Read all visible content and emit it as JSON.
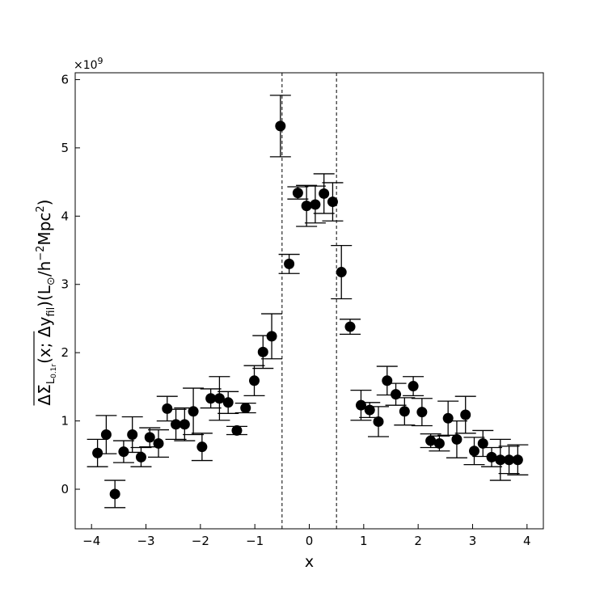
{
  "chart_data": {
    "type": "scatter",
    "title": "",
    "xlabel": "x",
    "ylabel": {
      "delta": "Δ",
      "sigma": "Σ",
      "sub": "L",
      "sub_detail": "0.1r",
      "args": "(x; Δy",
      "args_sub": "fil",
      "units_a": ")(L",
      "units_sun": "⊙",
      "units_b": "/h",
      "units_exp": "−2",
      "units_c": "Mpc",
      "units_exp2": "2",
      "units_d": ")"
    },
    "y_multiplier": "×10",
    "y_multiplier_exp": "9",
    "xlim": [
      -4.3,
      4.3
    ],
    "ylim": [
      -0.58,
      6.1
    ],
    "xticks": [
      {
        "v": -4,
        "label": "−4"
      },
      {
        "v": -3,
        "label": "−3"
      },
      {
        "v": -2,
        "label": "−2"
      },
      {
        "v": -1,
        "label": "−1"
      },
      {
        "v": 0,
        "label": "0"
      },
      {
        "v": 1,
        "label": "1"
      },
      {
        "v": 2,
        "label": "2"
      },
      {
        "v": 3,
        "label": "3"
      },
      {
        "v": 4,
        "label": "4"
      }
    ],
    "yticks": [
      {
        "v": 0,
        "label": "0"
      },
      {
        "v": 1,
        "label": "1"
      },
      {
        "v": 2,
        "label": "2"
      },
      {
        "v": 3,
        "label": "3"
      },
      {
        "v": 4,
        "label": "4"
      },
      {
        "v": 5,
        "label": "5"
      },
      {
        "v": 6,
        "label": "6"
      }
    ],
    "vlines": [
      -0.5,
      0.5
    ],
    "grid": false,
    "points": [
      {
        "x": -3.89,
        "y": 0.53,
        "err": 0.2
      },
      {
        "x": -3.73,
        "y": 0.8,
        "err": 0.28
      },
      {
        "x": -3.57,
        "y": -0.07,
        "err": 0.2
      },
      {
        "x": -3.41,
        "y": 0.55,
        "err": 0.16
      },
      {
        "x": -3.25,
        "y": 0.8,
        "err": 0.26
      },
      {
        "x": -3.09,
        "y": 0.47,
        "err": 0.14
      },
      {
        "x": -2.93,
        "y": 0.76,
        "err": 0.14
      },
      {
        "x": -2.77,
        "y": 0.67,
        "err": 0.2
      },
      {
        "x": -2.61,
        "y": 1.18,
        "err": 0.18
      },
      {
        "x": -2.45,
        "y": 0.95,
        "err": 0.22
      },
      {
        "x": -2.29,
        "y": 0.95,
        "err": 0.24
      },
      {
        "x": -2.13,
        "y": 1.14,
        "err": 0.34
      },
      {
        "x": -1.97,
        "y": 0.62,
        "err": 0.2
      },
      {
        "x": -1.81,
        "y": 1.33,
        "err": 0.14
      },
      {
        "x": -1.65,
        "y": 1.33,
        "err": 0.32
      },
      {
        "x": -1.49,
        "y": 1.27,
        "err": 0.16
      },
      {
        "x": -1.33,
        "y": 0.86,
        "err": 0.06
      },
      {
        "x": -1.17,
        "y": 1.19,
        "err": 0.07
      },
      {
        "x": -1.01,
        "y": 1.59,
        "err": 0.22
      },
      {
        "x": -0.85,
        "y": 2.01,
        "err": 0.24
      },
      {
        "x": -0.69,
        "y": 2.24,
        "err": 0.33
      },
      {
        "x": -0.53,
        "y": 5.32,
        "err": 0.45
      },
      {
        "x": -0.37,
        "y": 3.3,
        "err": 0.14
      },
      {
        "x": -0.21,
        "y": 4.34,
        "err": 0.09
      },
      {
        "x": -0.05,
        "y": 4.15,
        "err": 0.3
      },
      {
        "x": 0.11,
        "y": 4.17,
        "err": 0.27
      },
      {
        "x": 0.27,
        "y": 4.33,
        "err": 0.29
      },
      {
        "x": 0.43,
        "y": 4.21,
        "err": 0.28
      },
      {
        "x": 0.59,
        "y": 3.18,
        "err": 0.39
      },
      {
        "x": 0.75,
        "y": 2.38,
        "err": 0.11
      },
      {
        "x": 0.95,
        "y": 1.23,
        "err": 0.22
      },
      {
        "x": 1.11,
        "y": 1.16,
        "err": 0.11
      },
      {
        "x": 1.27,
        "y": 0.99,
        "err": 0.22
      },
      {
        "x": 1.43,
        "y": 1.59,
        "err": 0.21
      },
      {
        "x": 1.59,
        "y": 1.39,
        "err": 0.16
      },
      {
        "x": 1.75,
        "y": 1.14,
        "err": 0.2
      },
      {
        "x": 1.91,
        "y": 1.51,
        "err": 0.14
      },
      {
        "x": 2.07,
        "y": 1.13,
        "err": 0.2
      },
      {
        "x": 2.23,
        "y": 0.71,
        "err": 0.1
      },
      {
        "x": 2.39,
        "y": 0.67,
        "err": 0.11
      },
      {
        "x": 2.55,
        "y": 1.04,
        "err": 0.25
      },
      {
        "x": 2.71,
        "y": 0.73,
        "err": 0.27
      },
      {
        "x": 2.87,
        "y": 1.09,
        "err": 0.27
      },
      {
        "x": 3.03,
        "y": 0.56,
        "err": 0.2
      },
      {
        "x": 3.19,
        "y": 0.67,
        "err": 0.19
      },
      {
        "x": 3.35,
        "y": 0.47,
        "err": 0.14
      },
      {
        "x": 3.51,
        "y": 0.43,
        "err": 0.3
      },
      {
        "x": 3.67,
        "y": 0.43,
        "err": 0.2
      },
      {
        "x": 3.83,
        "y": 0.43,
        "err": 0.22
      }
    ]
  }
}
